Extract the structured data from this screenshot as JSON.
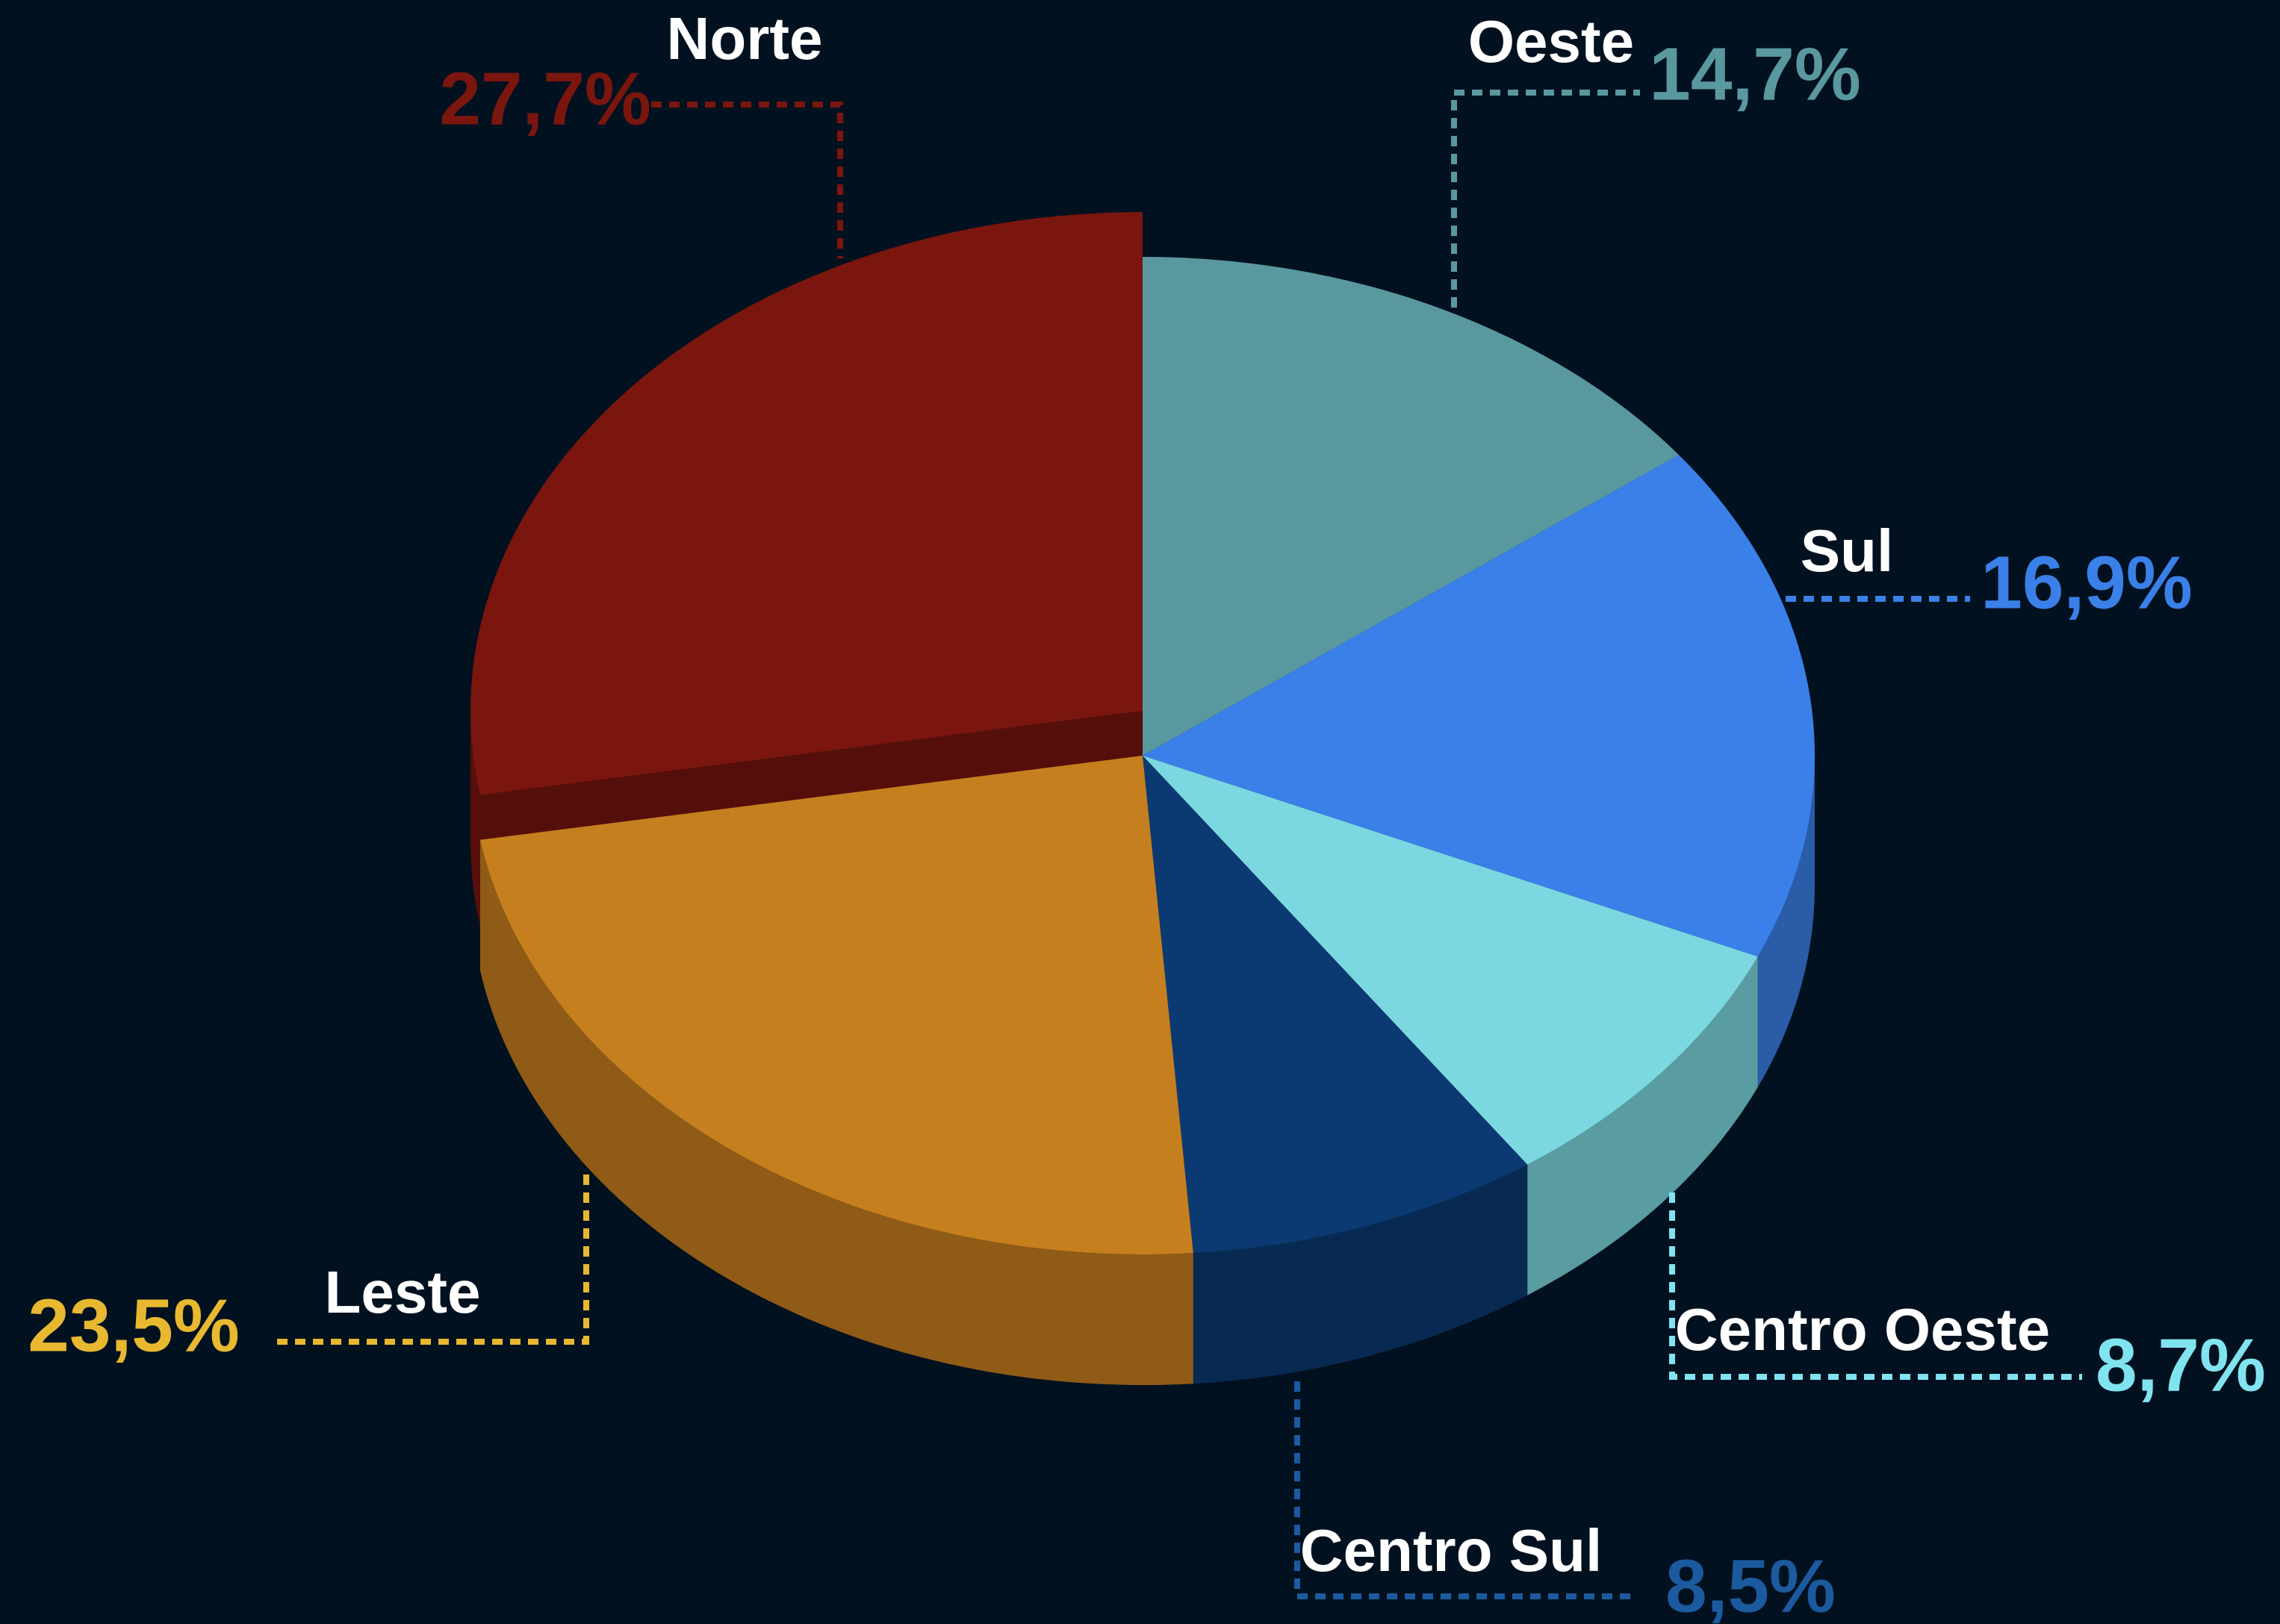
{
  "chart_data": {
    "type": "pie",
    "categories": [
      "Oeste",
      "Sul",
      "Centro Oeste",
      "Centro Sul",
      "Leste",
      "Norte"
    ],
    "values": [
      14.7,
      16.9,
      8.7,
      8.5,
      23.5,
      27.7
    ],
    "value_labels": [
      "14,7%",
      "16,9%",
      "8,7%",
      "8,5%",
      "23,5%",
      "27,7%"
    ],
    "colors": [
      "#5a98a0",
      "#3a80e8",
      "#7cd8e0",
      "#0b3a72",
      "#c67f1e",
      "#7a160e"
    ],
    "label_colors": [
      "#5a98a0",
      "#3a80e8",
      "#80e4f0",
      "#1c5aa0",
      "#e8b830",
      "#7a160e"
    ]
  }
}
